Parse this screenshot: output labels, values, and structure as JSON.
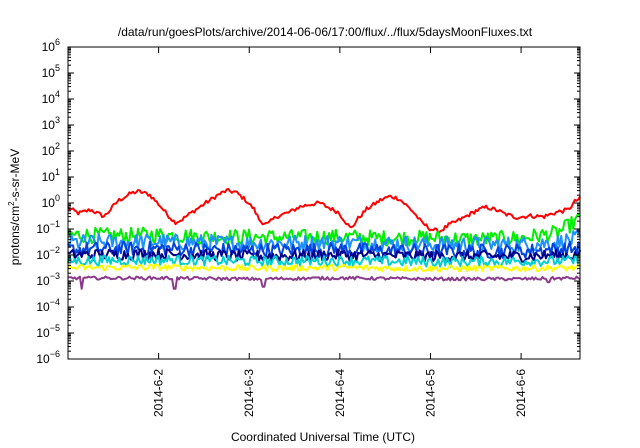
{
  "chart_data": {
    "type": "line",
    "title": "/data/run/goesPlots/archive/2014-06-06/17:00/flux/../flux/5daysMoonFluxes.txt",
    "xlabel": "Coordinated Universal Time (UTC)",
    "ylabel": "protons/cm²-s-sr-MeV",
    "ylabel_parts": {
      "pre": "protons/cm",
      "sup": "2",
      "post": "-s-sr-MeV"
    },
    "yscale": "log",
    "ylim_exp": [
      -6,
      6
    ],
    "ytick_exponents": [
      6,
      5,
      4,
      3,
      2,
      1,
      0,
      -1,
      -2,
      -3,
      -4,
      -5,
      -6
    ],
    "ytick_base": "10",
    "xlim_days": [
      0,
      5.65
    ],
    "xticks": [
      {
        "label": "2014-6-2",
        "day": 1.0
      },
      {
        "label": "2014-6-3",
        "day": 2.0
      },
      {
        "label": "2014-6-4",
        "day": 3.0
      },
      {
        "label": "2014-6-5",
        "day": 4.0
      },
      {
        "label": "2014-6-6",
        "day": 5.0
      }
    ],
    "grid": false,
    "series": [
      {
        "color": "#ff0000",
        "noise": 0.08,
        "points": [
          [
            0.0,
            0.65
          ],
          [
            0.12,
            0.4
          ],
          [
            0.25,
            0.55
          ],
          [
            0.4,
            0.3
          ],
          [
            0.55,
            1.2
          ],
          [
            0.7,
            2.4
          ],
          [
            0.78,
            2.8
          ],
          [
            0.9,
            2.1
          ],
          [
            1.0,
            0.9
          ],
          [
            1.1,
            0.35
          ],
          [
            1.18,
            0.18
          ],
          [
            1.25,
            0.22
          ],
          [
            1.35,
            0.4
          ],
          [
            1.5,
            0.9
          ],
          [
            1.65,
            2.0
          ],
          [
            1.75,
            3.0
          ],
          [
            1.85,
            2.6
          ],
          [
            1.95,
            1.4
          ],
          [
            2.05,
            0.6
          ],
          [
            2.12,
            0.2
          ],
          [
            2.2,
            0.15
          ],
          [
            2.3,
            0.3
          ],
          [
            2.45,
            0.45
          ],
          [
            2.55,
            0.7
          ],
          [
            2.68,
            0.9
          ],
          [
            2.78,
            1.0
          ],
          [
            2.88,
            0.65
          ],
          [
            2.98,
            0.45
          ],
          [
            3.05,
            0.22
          ],
          [
            3.12,
            0.1
          ],
          [
            3.2,
            0.25
          ],
          [
            3.3,
            0.6
          ],
          [
            3.45,
            1.3
          ],
          [
            3.55,
            1.8
          ],
          [
            3.65,
            1.5
          ],
          [
            3.72,
            0.9
          ],
          [
            3.8,
            0.5
          ],
          [
            3.9,
            0.18
          ],
          [
            4.0,
            0.1
          ],
          [
            4.1,
            0.08
          ],
          [
            4.2,
            0.14
          ],
          [
            4.35,
            0.25
          ],
          [
            4.5,
            0.5
          ],
          [
            4.62,
            0.7
          ],
          [
            4.75,
            0.5
          ],
          [
            4.82,
            0.38
          ],
          [
            4.95,
            0.28
          ],
          [
            5.1,
            0.32
          ],
          [
            5.25,
            0.3
          ],
          [
            5.4,
            0.45
          ],
          [
            5.52,
            0.55
          ],
          [
            5.6,
            1.2
          ],
          [
            5.65,
            1.5
          ]
        ]
      },
      {
        "color": "#00ee00",
        "noise": 0.3,
        "points": [
          [
            0.0,
            0.06
          ],
          [
            0.5,
            0.055
          ],
          [
            1.0,
            0.06
          ],
          [
            1.5,
            0.05
          ],
          [
            2.0,
            0.05
          ],
          [
            2.5,
            0.048
          ],
          [
            3.0,
            0.05
          ],
          [
            3.5,
            0.045
          ],
          [
            4.0,
            0.045
          ],
          [
            4.5,
            0.04
          ],
          [
            5.0,
            0.045
          ],
          [
            5.4,
            0.07
          ],
          [
            5.65,
            0.25
          ]
        ]
      },
      {
        "color": "#1e90ff",
        "noise": 0.32,
        "points": [
          [
            0.0,
            0.03
          ],
          [
            1.0,
            0.032
          ],
          [
            2.0,
            0.028
          ],
          [
            3.0,
            0.03
          ],
          [
            4.0,
            0.026
          ],
          [
            5.0,
            0.025
          ],
          [
            5.4,
            0.03
          ],
          [
            5.65,
            0.045
          ]
        ]
      },
      {
        "color": "#0044dd",
        "noise": 0.28,
        "points": [
          [
            0.0,
            0.016
          ],
          [
            1.0,
            0.018
          ],
          [
            2.0,
            0.015
          ],
          [
            3.0,
            0.016
          ],
          [
            4.0,
            0.014
          ],
          [
            5.0,
            0.014
          ],
          [
            5.65,
            0.018
          ]
        ]
      },
      {
        "color": "#00008b",
        "noise": 0.22,
        "points": [
          [
            0.0,
            0.01
          ],
          [
            1.0,
            0.011
          ],
          [
            2.0,
            0.009
          ],
          [
            3.0,
            0.01
          ],
          [
            4.0,
            0.009
          ],
          [
            5.0,
            0.009
          ],
          [
            5.65,
            0.01
          ]
        ]
      },
      {
        "color": "#00ced1",
        "noise": 0.2,
        "points": [
          [
            0.0,
            0.006
          ],
          [
            1.0,
            0.0065
          ],
          [
            2.0,
            0.0058
          ],
          [
            3.0,
            0.006
          ],
          [
            4.0,
            0.0055
          ],
          [
            5.0,
            0.0058
          ],
          [
            5.65,
            0.006
          ]
        ]
      },
      {
        "color": "#ffff00",
        "noise": 0.12,
        "points": [
          [
            0.0,
            0.0032
          ],
          [
            1.0,
            0.0034
          ],
          [
            2.0,
            0.0031
          ],
          [
            3.0,
            0.0033
          ],
          [
            4.0,
            0.003
          ],
          [
            5.0,
            0.0031
          ],
          [
            5.65,
            0.0032
          ]
        ]
      },
      {
        "color": "#8b3a8b",
        "noise": 0.06,
        "dips": [
          [
            0.15,
            0.0005
          ],
          [
            1.18,
            0.0005
          ],
          [
            2.15,
            0.0006
          ],
          [
            5.3,
            0.0009
          ]
        ],
        "points": [
          [
            0.0,
            0.0013
          ],
          [
            1.0,
            0.0013
          ],
          [
            2.0,
            0.0012
          ],
          [
            3.0,
            0.0013
          ],
          [
            4.0,
            0.0012
          ],
          [
            5.0,
            0.0012
          ],
          [
            5.65,
            0.0013
          ]
        ]
      }
    ]
  }
}
